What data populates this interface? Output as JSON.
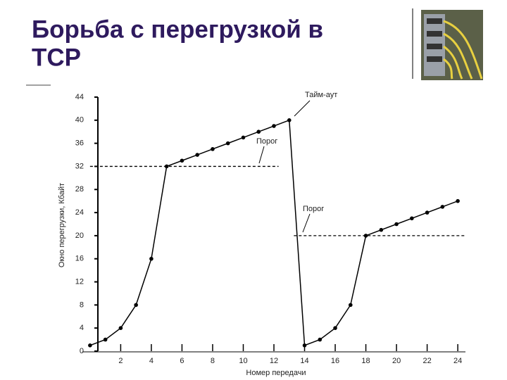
{
  "slide": {
    "title_lines": [
      "Борьба с перегрузкой в",
      "TCP"
    ]
  },
  "chart_data": {
    "type": "line",
    "x_label": "Номер передачи",
    "y_label": "Окно перегрузки, Кбайт",
    "x": [
      0,
      1,
      2,
      3,
      4,
      5,
      6,
      7,
      8,
      9,
      10,
      11,
      12,
      13,
      14,
      15,
      16,
      17,
      18,
      19,
      20,
      21,
      22,
      23,
      24
    ],
    "series": [
      {
        "color": "#000000",
        "values": [
          1,
          2,
          4,
          8,
          16,
          32,
          33,
          34,
          35,
          36,
          37,
          38,
          39,
          40,
          1,
          2,
          4,
          8,
          20,
          21,
          22,
          23,
          24,
          25,
          26
        ]
      }
    ],
    "reference_lines": [
      {
        "y": 32,
        "x": [
          0,
          12.3
        ]
      },
      {
        "y": 20,
        "x": [
          13.3,
          24.5
        ]
      }
    ],
    "annotations": [
      "Тайм-аут",
      "Порог",
      "Порог"
    ],
    "xlim": [
      -0.5,
      24.5
    ],
    "ylim": [
      0,
      44
    ],
    "xticks": [
      2,
      4,
      6,
      8,
      10,
      12,
      14,
      16,
      18,
      20,
      22,
      24
    ],
    "yticks": [
      0,
      4,
      8,
      12,
      16,
      20,
      24,
      28,
      32,
      36,
      40,
      44
    ]
  }
}
